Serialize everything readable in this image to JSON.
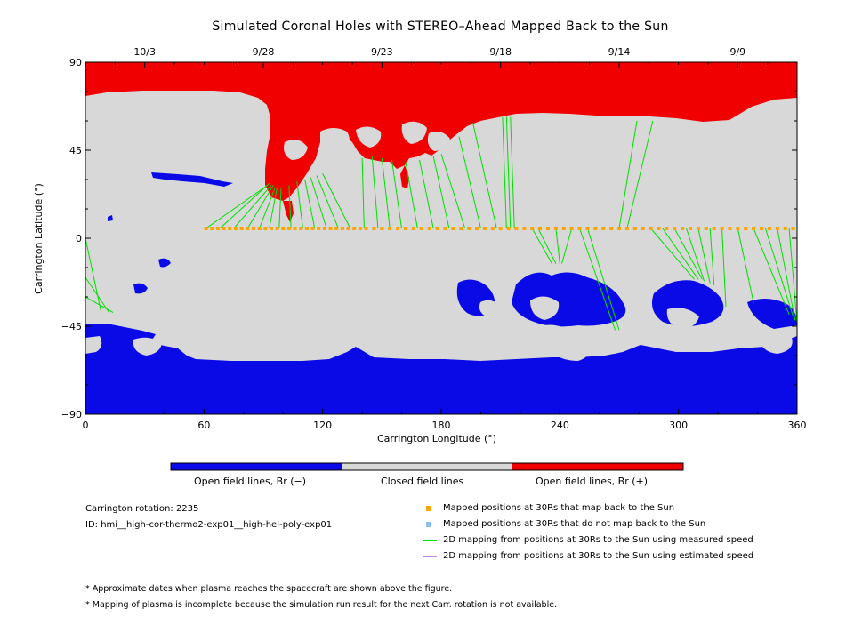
{
  "title": "Simulated Coronal Holes with STEREO–Ahead Mapped Back to the Sun",
  "chart_data": {
    "type": "scatter",
    "xlabel": "Carrington Longitude (°)",
    "ylabel": "Carrington Latitude (°)",
    "xlim": [
      0,
      360
    ],
    "ylim": [
      -90,
      90
    ],
    "x_ticks": [
      0,
      60,
      120,
      180,
      240,
      300,
      360
    ],
    "y_ticks": [
      -90,
      -45,
      0,
      45,
      90
    ],
    "top_axis_dates": [
      {
        "label": "10/3",
        "lon": 30
      },
      {
        "label": "9/28",
        "lon": 90
      },
      {
        "label": "9/23",
        "lon": 150
      },
      {
        "label": "9/18",
        "lon": 210
      },
      {
        "label": "9/14",
        "lon": 270
      },
      {
        "label": "9/9",
        "lon": 330
      }
    ],
    "colorbar": [
      {
        "label": "Open field lines, Br (−)",
        "color": "#0a0ae6"
      },
      {
        "label": "Closed field lines",
        "color": "#d8d8d8"
      },
      {
        "label": "Open field lines, Br (+)",
        "color": "#f00000"
      }
    ],
    "mapped_points_lon": [
      61,
      64,
      67,
      70,
      73,
      76,
      79,
      82,
      85,
      88,
      91,
      94,
      97,
      100,
      103,
      106,
      109,
      112,
      115,
      118,
      121,
      124,
      127,
      130,
      133,
      136,
      139,
      142,
      146,
      150,
      154,
      158,
      162,
      166,
      170,
      174,
      178,
      182,
      186,
      190,
      194,
      198,
      202,
      206,
      210,
      214,
      218,
      222,
      226,
      230,
      234,
      238,
      242,
      246,
      250,
      254,
      258,
      262,
      266,
      270,
      274,
      278,
      282,
      286,
      290,
      294,
      298,
      302,
      306,
      310,
      314,
      318,
      322,
      326,
      330,
      334,
      338,
      342,
      346,
      350,
      354,
      358
    ],
    "mapped_lat": 5,
    "field_lines": [
      {
        "from": [
          61,
          5
        ],
        "to": [
          92,
          27
        ]
      },
      {
        "from": [
          68,
          5
        ],
        "to": [
          93,
          28
        ]
      },
      {
        "from": [
          75,
          5
        ],
        "to": [
          94,
          27
        ]
      },
      {
        "from": [
          82,
          5
        ],
        "to": [
          95,
          27
        ]
      },
      {
        "from": [
          88,
          5
        ],
        "to": [
          96,
          26
        ]
      },
      {
        "from": [
          93,
          5
        ],
        "to": [
          97,
          26
        ]
      },
      {
        "from": [
          98,
          5
        ],
        "to": [
          99,
          26
        ]
      },
      {
        "from": [
          104,
          5
        ],
        "to": [
          103,
          27
        ]
      },
      {
        "from": [
          110,
          5
        ],
        "to": [
          107,
          29
        ]
      },
      {
        "from": [
          116,
          5
        ],
        "to": [
          111,
          30
        ]
      },
      {
        "from": [
          122,
          5
        ],
        "to": [
          114,
          31
        ]
      },
      {
        "from": [
          128,
          5
        ],
        "to": [
          117,
          32
        ]
      },
      {
        "from": [
          134,
          5
        ],
        "to": [
          120,
          33
        ]
      },
      {
        "from": [
          141,
          5
        ],
        "to": [
          140,
          41
        ]
      },
      {
        "from": [
          148,
          5
        ],
        "to": [
          145,
          42
        ]
      },
      {
        "from": [
          154,
          5
        ],
        "to": [
          150,
          41
        ]
      },
      {
        "from": [
          160,
          5
        ],
        "to": [
          155,
          40
        ]
      },
      {
        "from": [
          168,
          5
        ],
        "to": [
          162,
          39
        ]
      },
      {
        "from": [
          176,
          5
        ],
        "to": [
          169,
          40
        ]
      },
      {
        "from": [
          184,
          5
        ],
        "to": [
          176,
          42
        ]
      },
      {
        "from": [
          192,
          5
        ],
        "to": [
          180,
          43
        ]
      },
      {
        "from": [
          200,
          5
        ],
        "to": [
          189,
          52
        ]
      },
      {
        "from": [
          208,
          5
        ],
        "to": [
          196,
          59
        ]
      },
      {
        "from": [
          213,
          5
        ],
        "to": [
          211,
          62
        ]
      },
      {
        "from": [
          215,
          5
        ],
        "to": [
          213,
          62
        ]
      },
      {
        "from": [
          217,
          5
        ],
        "to": [
          215,
          62
        ]
      },
      {
        "from": [
          229,
          5
        ],
        "to": [
          238,
          -13
        ]
      },
      {
        "from": [
          238,
          5
        ],
        "to": [
          240,
          -13
        ]
      },
      {
        "from": [
          246,
          5
        ],
        "to": [
          241,
          -13
        ]
      },
      {
        "from": [
          226,
          5
        ],
        "to": [
          236,
          -13
        ]
      },
      {
        "from": [
          270,
          5
        ],
        "to": [
          279,
          60
        ]
      },
      {
        "from": [
          274,
          5
        ],
        "to": [
          287,
          60
        ]
      },
      {
        "from": [
          250,
          5
        ],
        "to": [
          268,
          -47
        ]
      },
      {
        "from": [
          254,
          5
        ],
        "to": [
          270,
          -47
        ]
      },
      {
        "from": [
          286,
          5
        ],
        "to": [
          308,
          -21
        ]
      },
      {
        "from": [
          292,
          5
        ],
        "to": [
          310,
          -21
        ]
      },
      {
        "from": [
          298,
          5
        ],
        "to": [
          312,
          -21
        ]
      },
      {
        "from": [
          304,
          5
        ],
        "to": [
          313,
          -22
        ]
      },
      {
        "from": [
          310,
          5
        ],
        "to": [
          316,
          -23
        ]
      },
      {
        "from": [
          316,
          5
        ],
        "to": [
          318,
          -24
        ]
      },
      {
        "from": [
          322,
          5
        ],
        "to": [
          324,
          -35
        ]
      },
      {
        "from": [
          330,
          5
        ],
        "to": [
          338,
          -33
        ]
      },
      {
        "from": [
          338,
          5
        ],
        "to": [
          356,
          -39
        ]
      },
      {
        "from": [
          344,
          5
        ],
        "to": [
          358,
          -40
        ]
      },
      {
        "from": [
          350,
          5
        ],
        "to": [
          359,
          -42
        ]
      },
      {
        "from": [
          356,
          5
        ],
        "to": [
          360,
          -44
        ]
      },
      {
        "from": [
          0,
          0
        ],
        "to": [
          8,
          -38
        ]
      },
      {
        "from": [
          0,
          -20
        ],
        "to": [
          12,
          -38
        ]
      },
      {
        "from": [
          0,
          -30
        ],
        "to": [
          14,
          -38
        ]
      }
    ],
    "grid": false
  },
  "info": {
    "rotation": "Carrington rotation: 2235",
    "id": "ID: hmi__high-cor-thermo2-exp01__high-hel-poly-exp01"
  },
  "legend": [
    {
      "label": "Mapped positions at 30Rs that map back to the Sun",
      "color": "#ffa500",
      "kind": "square"
    },
    {
      "label": "Mapped positions at 30Rs that do not map back to the Sun",
      "color": "#87bff0",
      "kind": "square"
    },
    {
      "label": "2D mapping from positions at 30Rs to the Sun using measured speed",
      "color": "#00e000",
      "kind": "line"
    },
    {
      "label": "2D mapping from positions at 30Rs to the Sun using estimated speed",
      "color": "#b888f0",
      "kind": "line"
    }
  ],
  "notes": [
    "* Approximate dates when plasma reaches the spacecraft are shown above the figure.",
    "* Mapping of plasma is incomplete because the simulation run result for the next Carr. rotation is not available."
  ]
}
